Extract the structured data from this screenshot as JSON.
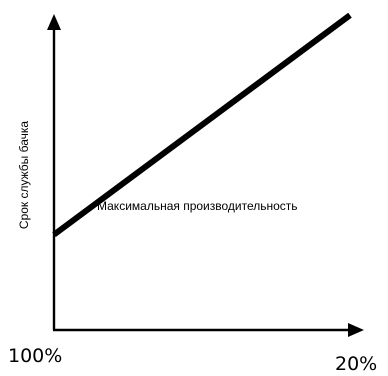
{
  "chart_data": {
    "type": "line",
    "title": "",
    "xlabel": "",
    "ylabel": "Срок службы бачка",
    "x_tick_labels": [
      "100%",
      "20%"
    ],
    "series": [
      {
        "values": [
          0.3,
          0.99
        ]
      }
    ],
    "xlim": [
      0,
      1
    ],
    "ylim": [
      0,
      1
    ],
    "annotations": [
      "Максимальная производительность"
    ],
    "grid": false,
    "legend": "none",
    "line_color": "#000000"
  }
}
